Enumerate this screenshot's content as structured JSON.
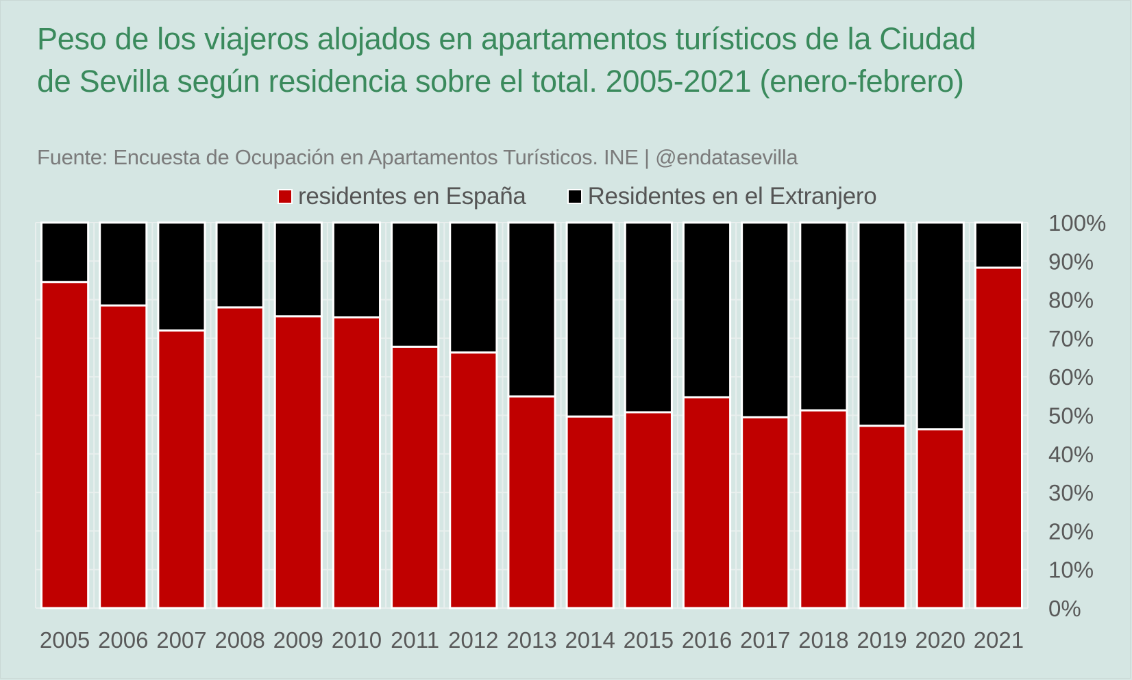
{
  "title": "Peso de los viajeros alojados en apartamentos turísticos de la Ciudad de Sevilla según residencia sobre el total. 2005-2021 (enero-febrero)",
  "subtitle": "Fuente: Encuesta de Ocupación en Apartamentos Turísticos. INE | @endatasevilla",
  "colors": {
    "background": "#d5e6e3",
    "title": "#3a8a5c",
    "spain": "#c00000",
    "abroad": "#000000",
    "text": "#595959"
  },
  "chart_data": {
    "type": "bar",
    "stacked": true,
    "title": "Peso de los viajeros alojados en apartamentos turísticos de la Ciudad de Sevilla según residencia sobre el total. 2005-2021 (enero-febrero)",
    "categories": [
      "2005",
      "2006",
      "2007",
      "2008",
      "2009",
      "2010",
      "2011",
      "2012",
      "2013",
      "2014",
      "2015",
      "2016",
      "2017",
      "2018",
      "2019",
      "2020",
      "2021"
    ],
    "series": [
      {
        "name": "residentes en España",
        "values": [
          84.6,
          78.5,
          72.0,
          78.0,
          75.7,
          75.4,
          67.8,
          66.3,
          54.9,
          49.7,
          50.8,
          54.7,
          49.5,
          51.3,
          47.3,
          46.4,
          88.3
        ]
      },
      {
        "name": "Residentes en el Extranjero",
        "values": [
          15.4,
          21.5,
          28.0,
          22.0,
          24.3,
          24.6,
          32.2,
          33.7,
          45.1,
          50.3,
          49.2,
          45.3,
          50.5,
          48.7,
          52.7,
          53.6,
          11.7
        ]
      }
    ],
    "ylim": [
      0,
      100
    ],
    "yticks": [
      "0%",
      "10%",
      "20%",
      "30%",
      "40%",
      "50%",
      "60%",
      "70%",
      "80%",
      "90%",
      "100%"
    ],
    "yaxis_position": "right",
    "legend_position": "top",
    "grid": true
  }
}
